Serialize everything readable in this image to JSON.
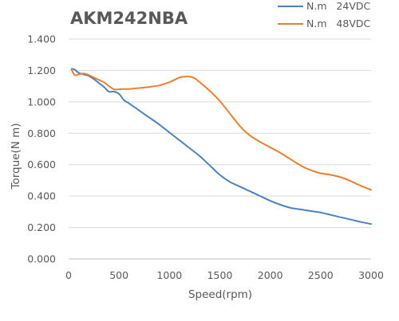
{
  "chart_data": {
    "type": "line",
    "title": "AKM242NBA",
    "xlabel": "Speed(rpm)",
    "ylabel": "Torque(N m)",
    "xlim": [
      0,
      3000
    ],
    "ylim": [
      0,
      1.4
    ],
    "xticks": [
      0,
      500,
      1000,
      1500,
      2000,
      2500,
      3000
    ],
    "yticks": [
      "0.000",
      "0.200",
      "0.400",
      "0.600",
      "0.800",
      "1.000",
      "1.200",
      "1.400"
    ],
    "grid": "horizontal",
    "legend_position": "top-right",
    "series": [
      {
        "name": "N.m   24VDC",
        "color": "#4f81bd",
        "x": [
          30,
          60,
          100,
          150,
          200,
          250,
          300,
          350,
          400,
          450,
          500,
          550,
          600,
          700,
          800,
          900,
          1000,
          1100,
          1200,
          1300,
          1400,
          1500,
          1600,
          1700,
          1800,
          1900,
          2000,
          2100,
          2200,
          2300,
          2400,
          2500,
          2600,
          2700,
          2800,
          2900,
          3000
        ],
        "values": [
          1.21,
          1.205,
          1.185,
          1.175,
          1.165,
          1.145,
          1.12,
          1.095,
          1.065,
          1.065,
          1.05,
          1.01,
          0.99,
          0.945,
          0.9,
          0.855,
          0.805,
          0.755,
          0.705,
          0.655,
          0.595,
          0.535,
          0.49,
          0.46,
          0.43,
          0.4,
          0.37,
          0.345,
          0.325,
          0.315,
          0.305,
          0.295,
          0.28,
          0.265,
          0.25,
          0.235,
          0.222
        ]
      },
      {
        "name": "N.m   48VDC",
        "color": "#e97f2f",
        "x": [
          30,
          60,
          100,
          150,
          200,
          250,
          300,
          350,
          400,
          450,
          500,
          550,
          600,
          700,
          800,
          900,
          1000,
          1100,
          1150,
          1200,
          1250,
          1300,
          1400,
          1500,
          1600,
          1700,
          1800,
          1900,
          2000,
          2100,
          2200,
          2300,
          2400,
          2500,
          2600,
          2700,
          2800,
          2900,
          3000
        ],
        "values": [
          1.205,
          1.17,
          1.175,
          1.18,
          1.17,
          1.155,
          1.14,
          1.125,
          1.1,
          1.08,
          1.08,
          1.082,
          1.082,
          1.088,
          1.095,
          1.105,
          1.125,
          1.155,
          1.16,
          1.16,
          1.15,
          1.125,
          1.07,
          1.005,
          0.925,
          0.845,
          0.785,
          0.745,
          0.71,
          0.675,
          0.635,
          0.595,
          0.565,
          0.545,
          0.535,
          0.52,
          0.495,
          0.465,
          0.44
        ]
      }
    ]
  }
}
